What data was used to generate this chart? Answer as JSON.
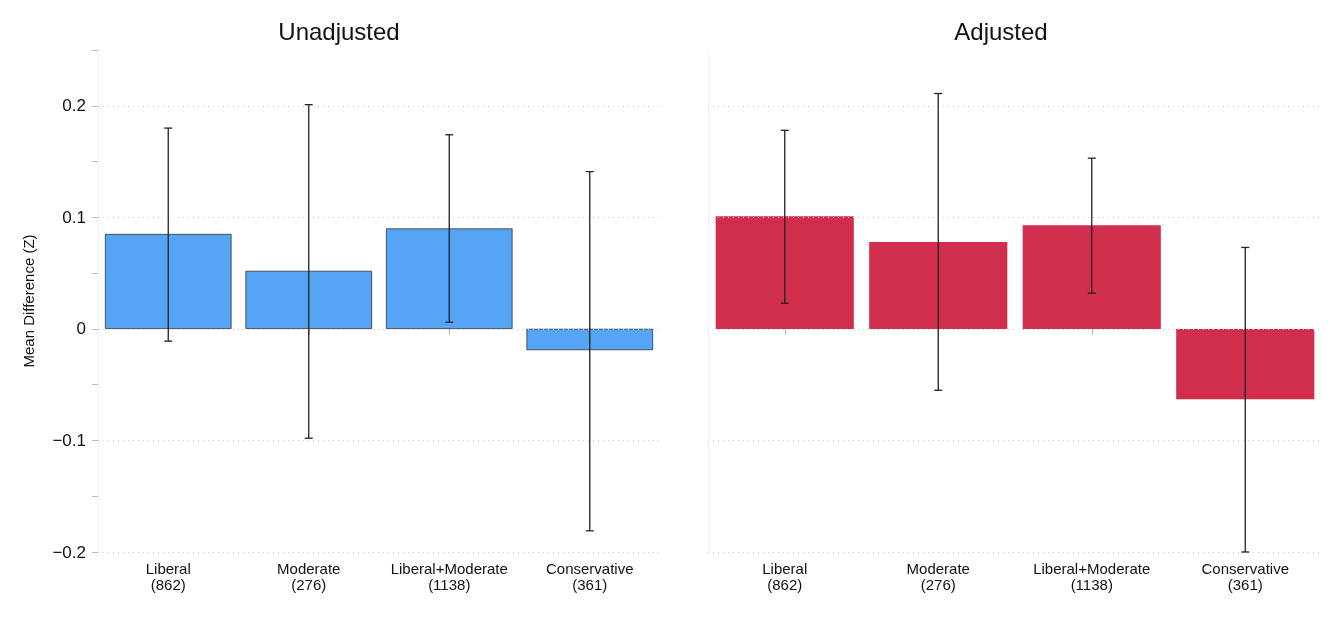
{
  "chart_data": [
    {
      "type": "bar",
      "title": "Unadjusted",
      "ylabel": "Mean Difference (Z)",
      "categories": [
        "Liberal\n(862)",
        "Moderate\n(276)",
        "Liberal+Moderate\n(1138)",
        "Conservative\n(361)"
      ],
      "values": [
        0.085,
        0.052,
        0.09,
        -0.019
      ],
      "color": "#56a5f5",
      "errors": [
        [
          -0.011,
          0.18
        ],
        [
          -0.098,
          0.201
        ],
        [
          0.006,
          0.174
        ],
        [
          -0.181,
          0.141
        ]
      ],
      "ylim": [
        -0.2,
        0.25
      ],
      "yticks": [
        -0.2,
        {
          "value": -0.15,
          "label": null
        },
        -0.1,
        {
          "value": -0.05,
          "label": null
        },
        0,
        {
          "value": 0.05,
          "label": null
        },
        0.1,
        {
          "value": 0.15,
          "label": null
        },
        0.2,
        {
          "value": 0.25,
          "label": null
        }
      ],
      "grid": "y"
    },
    {
      "type": "bar",
      "title": "Adjusted",
      "categories": [
        "Liberal\n(862)",
        "Moderate\n(276)",
        "Liberal+Moderate\n(1138)",
        "Conservative\n(361)"
      ],
      "values": [
        0.101,
        0.078,
        0.093,
        -0.063
      ],
      "color": "#d12d4c",
      "errors": [
        [
          0.023,
          0.178
        ],
        [
          -0.055,
          0.211
        ],
        [
          0.032,
          0.153
        ],
        [
          -0.2,
          0.073
        ]
      ],
      "ylim": [
        -0.2,
        0.25
      ],
      "yticks": [
        -0.2,
        -0.1,
        0,
        0.1,
        0.2
      ],
      "grid": "y",
      "tick_labels": "x"
    }
  ]
}
